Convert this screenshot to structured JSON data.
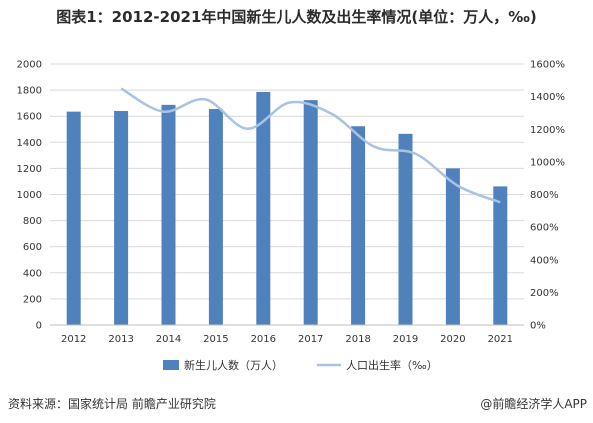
{
  "page": {
    "title": "图表1：2012-2021年中国新生儿人数及出生率情况(单位：万人，‰)",
    "source": "资料来源：国家统计局 前瞻产业研究院",
    "credit": "@前瞻经济学人APP"
  },
  "colors": {
    "bar": "#4f81bd",
    "line": "#a9c3e3",
    "grid": "#d9d9d9"
  },
  "chart_data": {
    "type": "bar",
    "categories": [
      "2012",
      "2013",
      "2014",
      "2015",
      "2016",
      "2017",
      "2018",
      "2019",
      "2020",
      "2021"
    ],
    "series": [
      {
        "name": "新生儿人数（万人）",
        "type": "bar",
        "axis": "left",
        "values": [
          1635,
          1640,
          1687,
          1655,
          1786,
          1723,
          1523,
          1465,
          1200,
          1062
        ]
      },
      {
        "name": "人口出生率（‰）",
        "type": "line",
        "axis": "right",
        "values": [
          1450,
          1308,
          1383,
          1203,
          1364,
          1294,
          1094,
          1048,
          852,
          752
        ]
      }
    ],
    "y_left": {
      "range": [
        0,
        2000
      ],
      "ticks": [
        "0",
        "200",
        "400",
        "600",
        "800",
        "1000",
        "1200",
        "1400",
        "1600",
        "1800",
        "2000"
      ]
    },
    "y_right": {
      "range": [
        0,
        1600
      ],
      "ticks": [
        "0%",
        "200%",
        "400%",
        "600%",
        "800%",
        "1000%",
        "1200%",
        "1400%",
        "1600%"
      ]
    },
    "grid": true,
    "legend": "bottom"
  }
}
